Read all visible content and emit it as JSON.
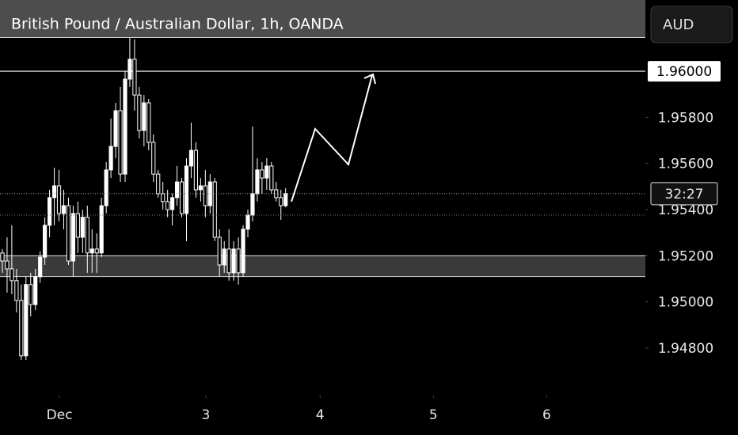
{
  "chart_data": {
    "type": "candlestick",
    "title": "British Pound / Australian Dollar, 1h, OANDA",
    "currency": "AUD",
    "countdown": "32:27",
    "up_color": "#ffffff",
    "down_color": "#000000",
    "wick_color": "#ffffff",
    "x": [
      0.5,
      1.5,
      2.5,
      3.5,
      4.5,
      5.5,
      6.5,
      7.5,
      8.5,
      9.5,
      10.5,
      11.5,
      12.5,
      13.5,
      14.5,
      15.5,
      16.5,
      17.5,
      18.5,
      19.5,
      20.5,
      21.5,
      22.5,
      23.5,
      24.5,
      25.5,
      26.5,
      27.5,
      28.5,
      29.5,
      30.5,
      31.5,
      32.5,
      33.5,
      34.5,
      35.5,
      36.5,
      37.5,
      38.5,
      39.5,
      40.5,
      41.5,
      42.5,
      43.5,
      44.5,
      45.5,
      46.5,
      47.5,
      48.5,
      49.5,
      50.5,
      51.5,
      52.5,
      53.5,
      54.5,
      55.5,
      56.5,
      57.5,
      58.5,
      59.5,
      60.5
    ],
    "open": [
      1.95212,
      1.95177,
      1.95143,
      1.95092,
      1.95006,
      1.94766,
      1.95075,
      1.94988,
      1.95109,
      1.95194,
      1.95332,
      1.95452,
      1.95503,
      1.95383,
      1.95417,
      1.95177,
      1.95383,
      1.9528,
      1.95367,
      1.95212,
      1.95229,
      1.95212,
      1.95417,
      1.95572,
      1.95674,
      1.95829,
      1.95554,
      1.95966,
      1.96052,
      1.95897,
      1.95743,
      1.95863,
      1.95692,
      1.95554,
      1.95469,
      1.95435,
      1.954,
      1.95452,
      1.9552,
      1.95383,
      1.95589,
      1.95657,
      1.95486,
      1.95503,
      1.95417,
      1.9552,
      1.9528,
      1.9516,
      1.95229,
      1.95126,
      1.95229,
      1.95126,
      1.95315,
      1.95376,
      1.95469,
      1.95572,
      1.95537,
      1.95589,
      1.95486,
      1.95452,
      1.95417
    ],
    "high": [
      1.95229,
      1.9528,
      1.95332,
      1.95143,
      1.95075,
      1.95109,
      1.95126,
      1.95143,
      1.95219,
      1.95367,
      1.95486,
      1.95582,
      1.95572,
      1.95486,
      1.95452,
      1.95417,
      1.95435,
      1.954,
      1.95417,
      1.95315,
      1.95297,
      1.95452,
      1.95606,
      1.95795,
      1.95863,
      1.95932,
      1.96,
      1.96144,
      1.96138,
      1.95932,
      1.95897,
      1.9588,
      1.95726,
      1.95572,
      1.9552,
      1.95486,
      1.95469,
      1.95589,
      1.95537,
      1.95623,
      1.95777,
      1.95692,
      1.95537,
      1.95572,
      1.95554,
      1.95537,
      1.95315,
      1.95263,
      1.95315,
      1.95263,
      1.9528,
      1.95332,
      1.954,
      1.9576,
      1.95623,
      1.95606,
      1.95623,
      1.95606,
      1.9552,
      1.95486,
      1.95493
    ],
    "low": [
      1.95126,
      1.9504,
      1.95033,
      1.94954,
      1.94748,
      1.94748,
      1.94937,
      1.94964,
      1.95082,
      1.9516,
      1.9528,
      1.95332,
      1.95349,
      1.95315,
      1.9516,
      1.95109,
      1.95212,
      1.95212,
      1.95126,
      1.95126,
      1.95126,
      1.95194,
      1.95383,
      1.95537,
      1.95623,
      1.9552,
      1.9552,
      1.95932,
      1.95829,
      1.95709,
      1.95674,
      1.95657,
      1.9552,
      1.95452,
      1.954,
      1.95367,
      1.95332,
      1.95417,
      1.95367,
      1.95263,
      1.95537,
      1.95452,
      1.95435,
      1.95367,
      1.95383,
      1.95263,
      1.95109,
      1.95126,
      1.95092,
      1.95092,
      1.95075,
      1.95109,
      1.9528,
      1.95349,
      1.95435,
      1.95469,
      1.95486,
      1.95469,
      1.95435,
      1.95356,
      1.9541
    ],
    "close": [
      1.95177,
      1.95143,
      1.95092,
      1.95006,
      1.94766,
      1.95075,
      1.94988,
      1.95109,
      1.95194,
      1.95332,
      1.95452,
      1.95503,
      1.95383,
      1.95417,
      1.95177,
      1.95383,
      1.9528,
      1.95367,
      1.95212,
      1.95229,
      1.95212,
      1.95417,
      1.95572,
      1.95674,
      1.95829,
      1.95554,
      1.95966,
      1.96052,
      1.95897,
      1.95743,
      1.95863,
      1.95692,
      1.95554,
      1.95469,
      1.95435,
      1.954,
      1.95452,
      1.9552,
      1.95383,
      1.95589,
      1.95657,
      1.95486,
      1.95503,
      1.95417,
      1.9552,
      1.9528,
      1.9516,
      1.95229,
      1.95126,
      1.95229,
      1.95126,
      1.95315,
      1.95376,
      1.95469,
      1.95572,
      1.95537,
      1.95589,
      1.95486,
      1.95452,
      1.95417,
      1.95469
    ],
    "xlim": [
      0,
      136.7
    ],
    "xticks": [
      {
        "value": 12.6,
        "label": "Dec"
      },
      {
        "value": 43.6,
        "label": "3"
      },
      {
        "value": 67.8,
        "label": "4"
      },
      {
        "value": 91.8,
        "label": "5"
      },
      {
        "value": 115.8,
        "label": "6"
      }
    ],
    "ylim": [
      1.94594,
      1.96309
    ],
    "yticks": [
      {
        "value": 1.958,
        "label": "1.95800"
      },
      {
        "value": 1.956,
        "label": "1.95600"
      },
      {
        "value": 1.954,
        "label": "1.95400"
      },
      {
        "value": 1.952,
        "label": "1.95200"
      },
      {
        "value": 1.95,
        "label": "1.95000"
      },
      {
        "value": 1.948,
        "label": "1.94800"
      }
    ],
    "level": {
      "value": 1.96,
      "label": "1.96000"
    },
    "zone": [
      1.9511,
      1.952
    ]
  }
}
